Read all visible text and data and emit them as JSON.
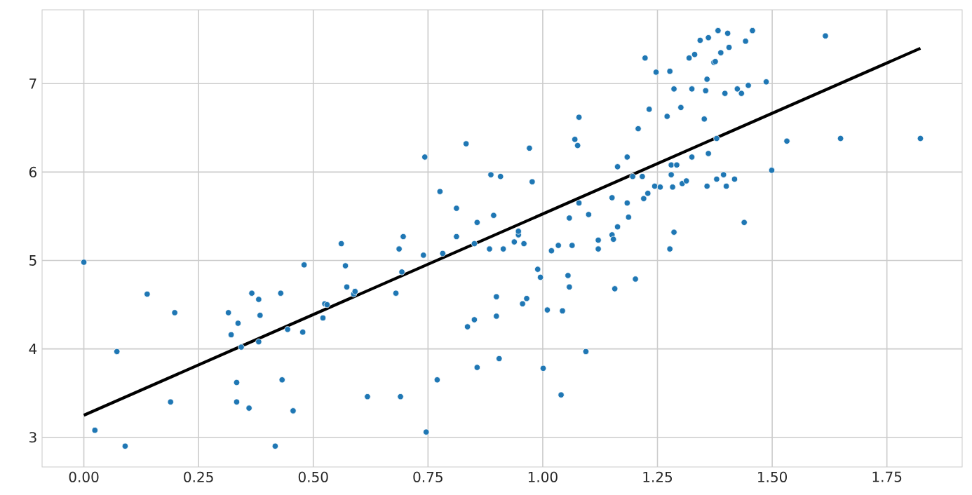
{
  "chart_data": {
    "type": "scatter",
    "xlim": [
      -0.091,
      1.914
    ],
    "ylim": [
      2.665,
      7.835
    ],
    "xticks": [
      {
        "value": 0,
        "label": "0.00"
      },
      {
        "value": 0.25,
        "label": "0.25"
      },
      {
        "value": 0.5,
        "label": "0.50"
      },
      {
        "value": 0.75,
        "label": "0.75"
      },
      {
        "value": 1,
        "label": "1.00"
      },
      {
        "value": 1.25,
        "label": "1.25"
      },
      {
        "value": 1.5,
        "label": "1.50"
      },
      {
        "value": 1.75,
        "label": "1.75"
      }
    ],
    "yticks": [
      3,
      4,
      5,
      6,
      7
    ],
    "grid": true,
    "series": [
      {
        "color": "#1f77b4",
        "marker": "circle",
        "x": [
          0,
          0.024,
          0.072,
          0.09,
          0.138,
          0.189,
          0.198,
          0.315,
          0.321,
          0.336,
          0.333,
          0.333,
          0.343,
          0.36,
          0.366,
          0.381,
          0.384,
          0.381,
          0.417,
          0.429,
          0.432,
          0.444,
          0.456,
          0.477,
          0.48,
          0.521,
          0.525,
          0.53,
          0.561,
          0.57,
          0.573,
          0.588,
          0.591,
          0.618,
          0.68,
          0.687,
          0.69,
          0.693,
          0.696,
          0.74,
          0.743,
          0.746,
          0.77,
          0.776,
          0.782,
          0.812,
          0.812,
          0.833,
          0.836,
          0.851,
          0.851,
          0.857,
          0.857,
          0.884,
          0.887,
          0.893,
          0.899,
          0.899,
          0.905,
          0.908,
          0.914,
          0.938,
          0.947,
          0.947,
          0.959,
          0.956,
          0.965,
          0.971,
          0.977,
          0.989,
          0.995,
          1.001,
          1.01,
          1.019,
          1.034,
          1.04,
          1.043,
          1.055,
          1.058,
          1.058,
          1.064,
          1.07,
          1.076,
          1.079,
          1.079,
          1.094,
          1.1,
          1.121,
          1.121,
          1.151,
          1.151,
          1.154,
          1.157,
          1.163,
          1.163,
          1.184,
          1.184,
          1.187,
          1.196,
          1.202,
          1.208,
          1.217,
          1.22,
          1.223,
          1.229,
          1.232,
          1.244,
          1.247,
          1.256,
          1.271,
          1.277,
          1.277,
          1.28,
          1.28,
          1.283,
          1.286,
          1.286,
          1.292,
          1.301,
          1.304,
          1.313,
          1.319,
          1.325,
          1.325,
          1.331,
          1.343,
          1.352,
          1.355,
          1.358,
          1.358,
          1.361,
          1.361,
          1.373,
          1.376,
          1.379,
          1.379,
          1.382,
          1.388,
          1.394,
          1.397,
          1.4,
          1.403,
          1.406,
          1.418,
          1.424,
          1.433,
          1.439,
          1.442,
          1.448,
          1.457,
          1.487,
          1.499,
          1.532,
          1.616,
          1.649,
          1.823
        ],
        "values": [
          4.98,
          3.08,
          3.97,
          2.9,
          4.62,
          3.4,
          4.41,
          4.41,
          4.16,
          4.29,
          3.62,
          3.4,
          4.02,
          3.33,
          4.63,
          4.56,
          4.38,
          4.08,
          2.9,
          4.63,
          3.65,
          4.22,
          3.3,
          4.19,
          4.95,
          4.35,
          4.51,
          4.5,
          5.19,
          4.94,
          4.7,
          4.62,
          4.65,
          3.46,
          4.63,
          5.13,
          3.46,
          4.87,
          5.27,
          5.06,
          6.17,
          3.06,
          3.65,
          5.78,
          5.08,
          5.59,
          5.27,
          6.32,
          4.25,
          4.33,
          5.19,
          5.43,
          3.79,
          5.13,
          5.97,
          5.51,
          4.59,
          4.37,
          3.89,
          5.95,
          5.13,
          5.21,
          5.29,
          5.33,
          5.19,
          4.51,
          4.57,
          6.27,
          5.89,
          4.9,
          4.81,
          3.78,
          4.44,
          5.11,
          5.17,
          3.48,
          4.43,
          4.83,
          4.7,
          5.48,
          5.17,
          6.37,
          6.3,
          6.62,
          5.65,
          3.97,
          5.52,
          5.23,
          5.13,
          5.71,
          5.29,
          5.24,
          4.68,
          6.06,
          5.38,
          6.17,
          5.65,
          5.49,
          5.95,
          4.79,
          6.49,
          5.95,
          5.7,
          7.29,
          5.76,
          6.71,
          5.84,
          7.13,
          5.83,
          6.63,
          7.14,
          5.13,
          6.08,
          5.97,
          5.83,
          6.94,
          5.32,
          6.08,
          6.73,
          5.87,
          5.9,
          7.29,
          6.94,
          6.17,
          7.33,
          7.49,
          6.6,
          6.92,
          7.05,
          5.84,
          7.52,
          6.21,
          7.24,
          7.25,
          5.92,
          6.38,
          7.6,
          7.35,
          5.97,
          6.89,
          5.84,
          7.57,
          7.41,
          5.92,
          6.94,
          6.89,
          5.43,
          7.48,
          6.98,
          7.6,
          7.02,
          6.02,
          6.35,
          7.54,
          6.38,
          6.38
        ]
      },
      {
        "type": "line",
        "color": "#000000",
        "line_style": "solid",
        "marker": "none",
        "x": [
          0,
          1.823
        ],
        "values": [
          3.25,
          7.4
        ]
      }
    ]
  }
}
